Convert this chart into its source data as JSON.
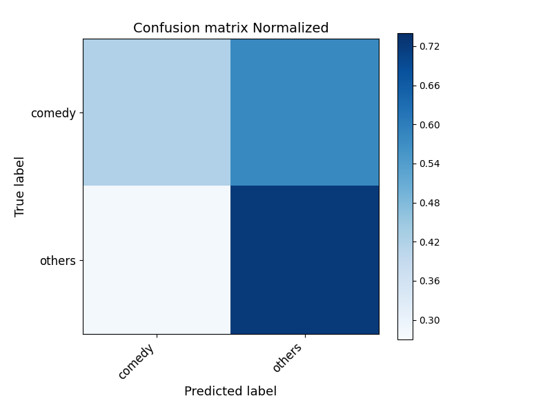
{
  "matrix": [
    [
      0.42,
      0.58
    ],
    [
      0.28,
      0.72
    ]
  ],
  "classes": [
    "comedy",
    "others"
  ],
  "title": "Confusion matrix Normalized",
  "xlabel": "Predicted label",
  "ylabel": "True label",
  "cmap": "Blues",
  "vmin": 0.27,
  "vmax": 0.74,
  "colorbar_ticks": [
    0.3,
    0.36,
    0.42,
    0.48,
    0.54,
    0.6,
    0.66,
    0.72
  ],
  "figsize": [
    8.0,
    6.0
  ],
  "dpi": 100,
  "title_fontsize": 14,
  "label_fontsize": 13,
  "tick_fontsize": 12
}
